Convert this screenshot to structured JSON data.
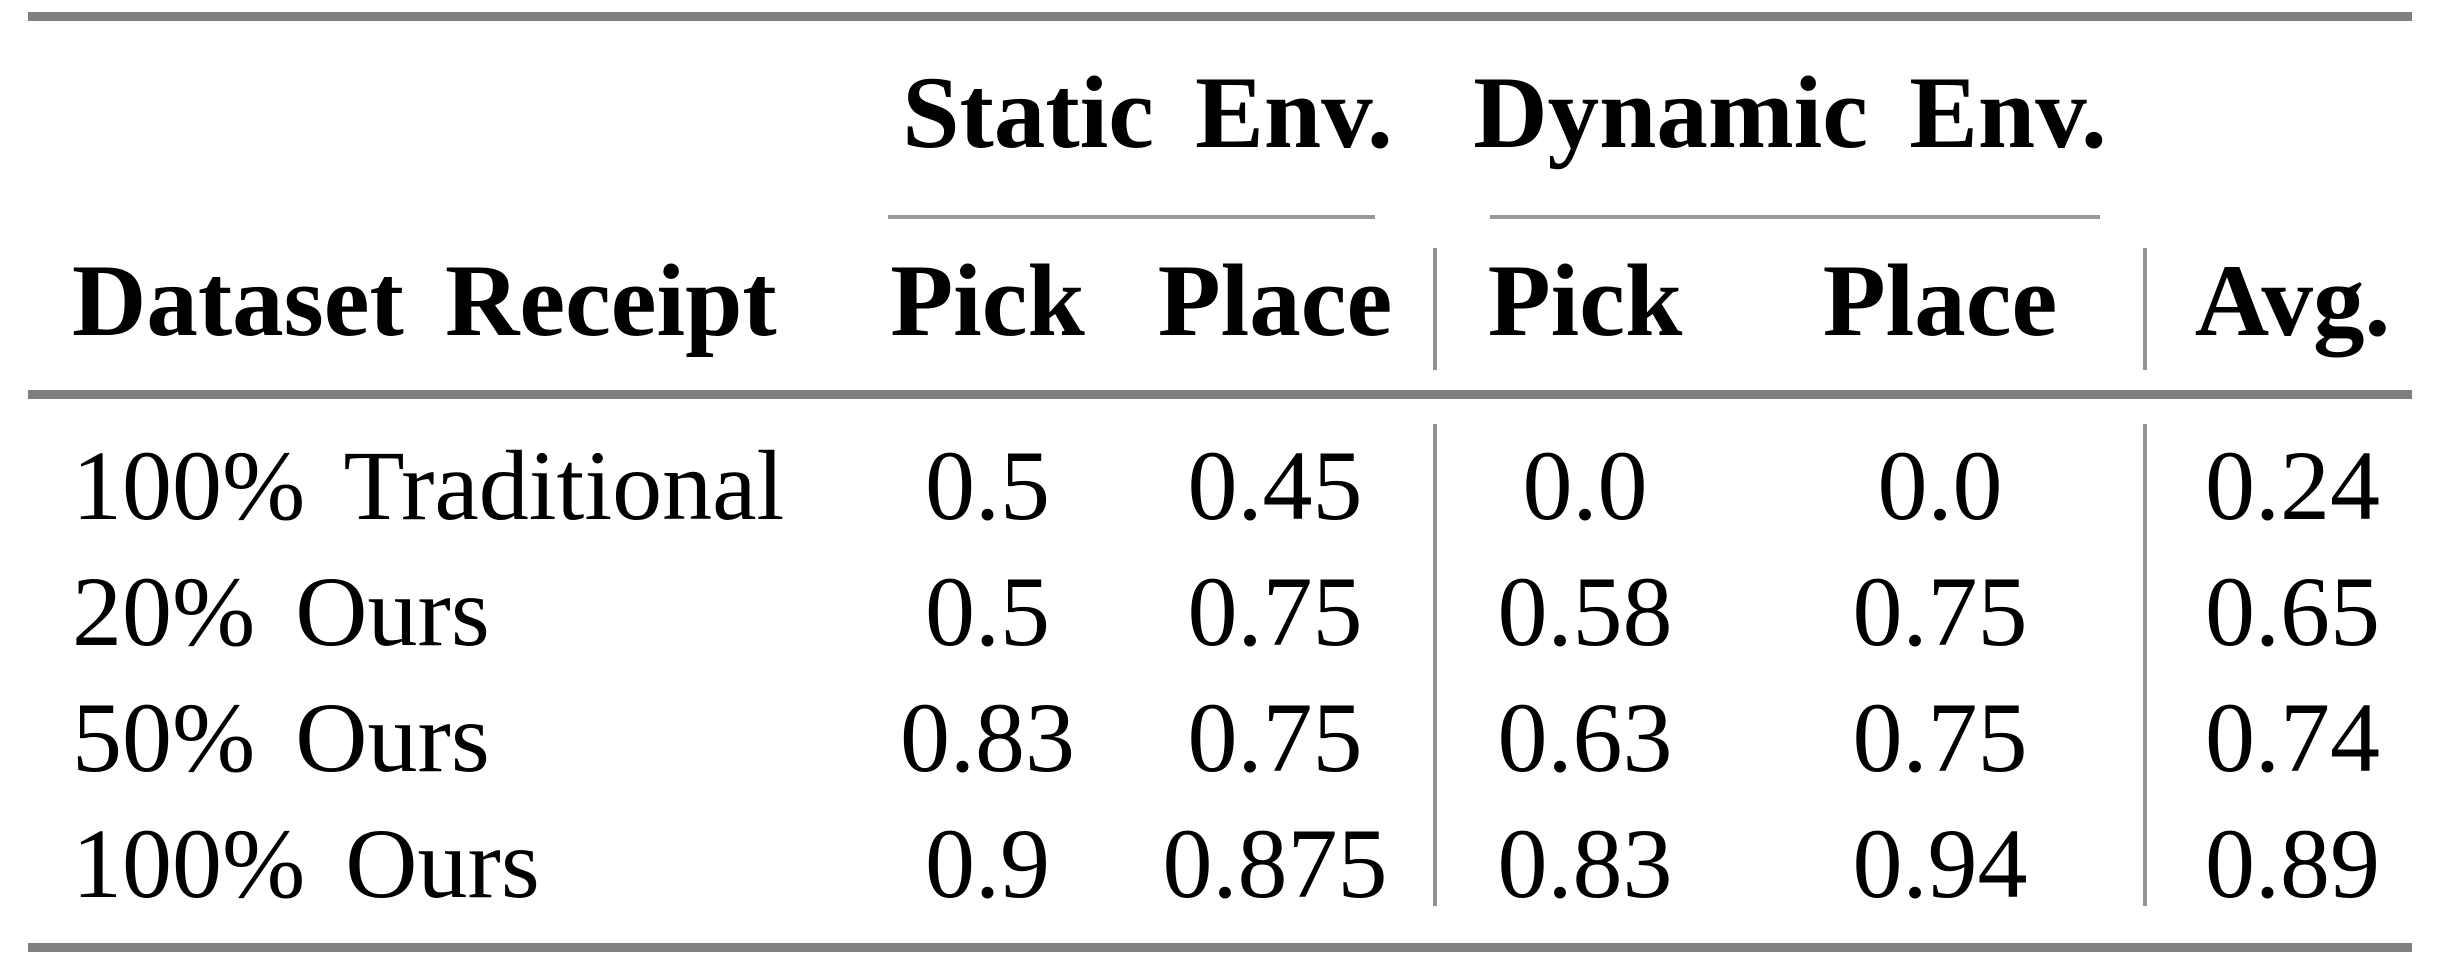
{
  "table": {
    "column_groups": [
      {
        "label": "Static Env."
      },
      {
        "label": "Dynamic Env."
      }
    ],
    "column_headers": [
      "Dataset Receipt",
      "Pick",
      "Place",
      "Pick",
      "Place",
      "Avg."
    ],
    "rows": [
      {
        "label": "100% Traditional",
        "static_pick": "0.5",
        "static_place": "0.45",
        "dynamic_pick": "0.0",
        "dynamic_place": "0.0",
        "avg": "0.24"
      },
      {
        "label": "20% Ours",
        "static_pick": "0.5",
        "static_place": "0.75",
        "dynamic_pick": "0.58",
        "dynamic_place": "0.75",
        "avg": "0.65"
      },
      {
        "label": "50% Ours",
        "static_pick": "0.83",
        "static_place": "0.75",
        "dynamic_pick": "0.63",
        "dynamic_place": "0.75",
        "avg": "0.74"
      },
      {
        "label": "100% Ours",
        "static_pick": "0.9",
        "static_place": "0.875",
        "dynamic_pick": "0.83",
        "dynamic_place": "0.94",
        "avg": "0.89"
      }
    ],
    "colors": {
      "thick_rule": "#7f7f7f",
      "thin_rule": "#9a9a9a",
      "text": "#000000",
      "background": "#ffffff"
    }
  },
  "chart_data": {
    "type": "table",
    "title": "",
    "column_groups": [
      "",
      "Static Env.",
      "Static Env.",
      "Dynamic Env.",
      "Dynamic Env.",
      ""
    ],
    "columns": [
      "Dataset Receipt",
      "Pick",
      "Place",
      "Pick",
      "Place",
      "Avg."
    ],
    "rows": [
      [
        "100% Traditional",
        0.5,
        0.45,
        0.0,
        0.0,
        0.24
      ],
      [
        "20% Ours",
        0.5,
        0.75,
        0.58,
        0.75,
        0.65
      ],
      [
        "50% Ours",
        0.83,
        0.75,
        0.63,
        0.75,
        0.74
      ],
      [
        "100% Ours",
        0.9,
        0.875,
        0.83,
        0.94,
        0.89
      ]
    ]
  }
}
